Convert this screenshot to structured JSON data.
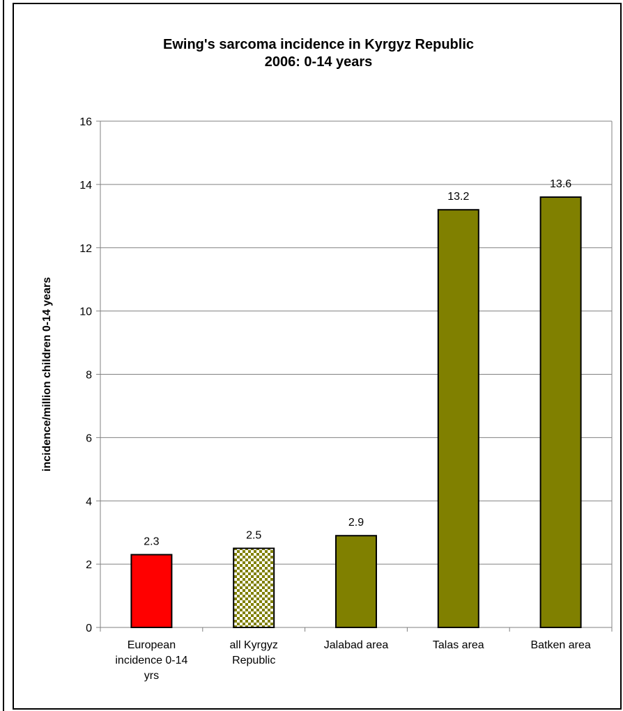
{
  "chart_data": {
    "type": "bar",
    "title": [
      "Ewing's sarcoma incidence in Kyrgyz Republic",
      "2006: 0-14 years"
    ],
    "ylabel": "incidence/million children 0-14 years",
    "xlabel": "",
    "ylim": [
      0,
      16
    ],
    "yticks": [
      "0",
      "2",
      "4",
      "6",
      "8",
      "10",
      "12",
      "14",
      "16"
    ],
    "grid": "horizontal",
    "legend": "none",
    "categories": [
      [
        "European",
        "incidence 0-14",
        "yrs"
      ],
      [
        "all Kyrgyz",
        "Republic"
      ],
      [
        "Jalabad area"
      ],
      [
        "Talas area"
      ],
      [
        "Batken area"
      ]
    ],
    "values": [
      2.3,
      2.5,
      2.9,
      13.2,
      13.6
    ],
    "data_labels": [
      "2.3",
      "2.5",
      "2.9",
      "13.2",
      "13.6"
    ],
    "bar_fills": [
      "red",
      "checker-olive",
      "olive",
      "olive",
      "olive"
    ],
    "colors": {
      "red": "#ff0000",
      "olive": "#808000",
      "checker_light": "#ffffff",
      "grid": "#808080"
    }
  }
}
